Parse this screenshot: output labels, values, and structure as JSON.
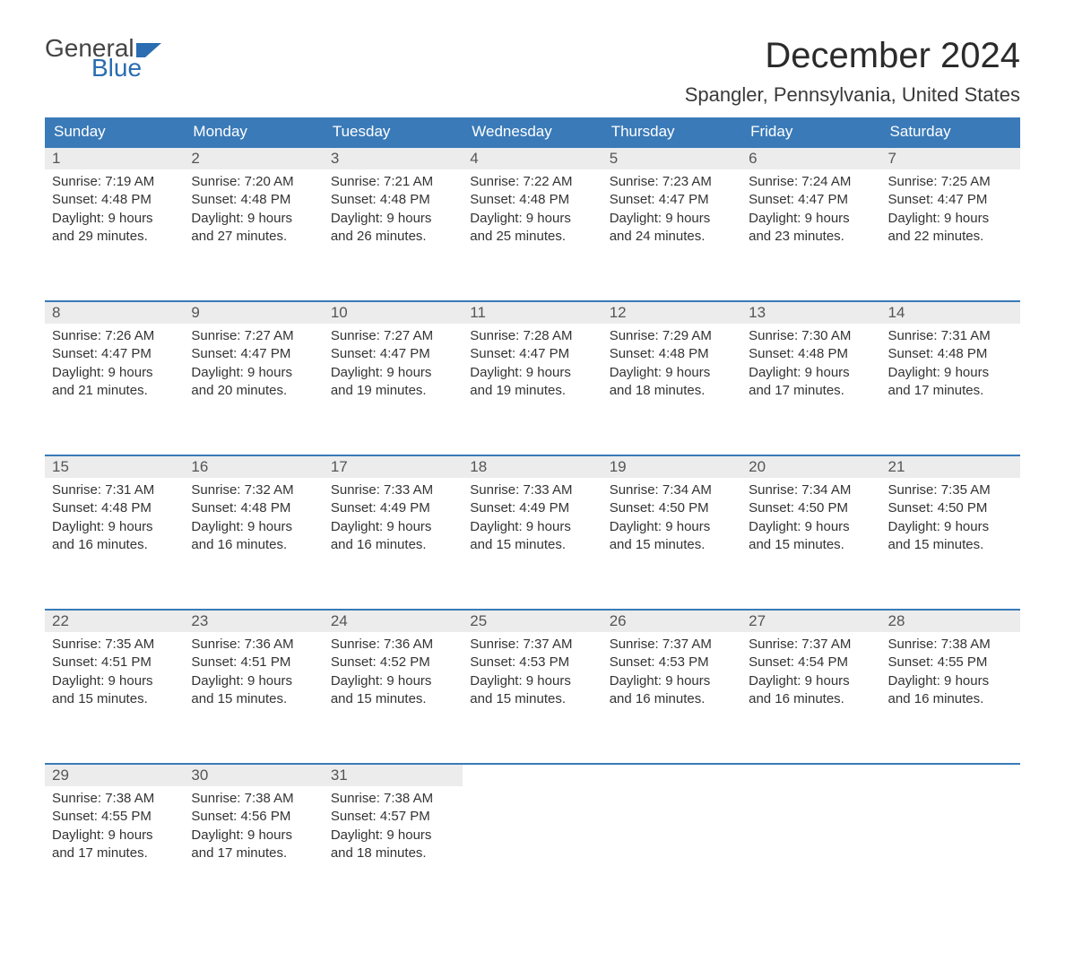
{
  "logo": {
    "word1": "General",
    "word2": "Blue"
  },
  "colors": {
    "header_bg": "#3a7ab8",
    "header_text": "#ffffff",
    "daynum_bg": "#ececec",
    "row_border": "#3a7ab8",
    "body_text": "#333333",
    "logo_gray": "#444444",
    "logo_blue": "#2a6db0"
  },
  "title": "December 2024",
  "location": "Spangler, Pennsylvania, United States",
  "day_headers": [
    "Sunday",
    "Monday",
    "Tuesday",
    "Wednesday",
    "Thursday",
    "Friday",
    "Saturday"
  ],
  "weeks": [
    [
      {
        "n": "1",
        "sr": "Sunrise: 7:19 AM",
        "ss": "Sunset: 4:48 PM",
        "d1": "Daylight: 9 hours",
        "d2": "and 29 minutes."
      },
      {
        "n": "2",
        "sr": "Sunrise: 7:20 AM",
        "ss": "Sunset: 4:48 PM",
        "d1": "Daylight: 9 hours",
        "d2": "and 27 minutes."
      },
      {
        "n": "3",
        "sr": "Sunrise: 7:21 AM",
        "ss": "Sunset: 4:48 PM",
        "d1": "Daylight: 9 hours",
        "d2": "and 26 minutes."
      },
      {
        "n": "4",
        "sr": "Sunrise: 7:22 AM",
        "ss": "Sunset: 4:48 PM",
        "d1": "Daylight: 9 hours",
        "d2": "and 25 minutes."
      },
      {
        "n": "5",
        "sr": "Sunrise: 7:23 AM",
        "ss": "Sunset: 4:47 PM",
        "d1": "Daylight: 9 hours",
        "d2": "and 24 minutes."
      },
      {
        "n": "6",
        "sr": "Sunrise: 7:24 AM",
        "ss": "Sunset: 4:47 PM",
        "d1": "Daylight: 9 hours",
        "d2": "and 23 minutes."
      },
      {
        "n": "7",
        "sr": "Sunrise: 7:25 AM",
        "ss": "Sunset: 4:47 PM",
        "d1": "Daylight: 9 hours",
        "d2": "and 22 minutes."
      }
    ],
    [
      {
        "n": "8",
        "sr": "Sunrise: 7:26 AM",
        "ss": "Sunset: 4:47 PM",
        "d1": "Daylight: 9 hours",
        "d2": "and 21 minutes."
      },
      {
        "n": "9",
        "sr": "Sunrise: 7:27 AM",
        "ss": "Sunset: 4:47 PM",
        "d1": "Daylight: 9 hours",
        "d2": "and 20 minutes."
      },
      {
        "n": "10",
        "sr": "Sunrise: 7:27 AM",
        "ss": "Sunset: 4:47 PM",
        "d1": "Daylight: 9 hours",
        "d2": "and 19 minutes."
      },
      {
        "n": "11",
        "sr": "Sunrise: 7:28 AM",
        "ss": "Sunset: 4:47 PM",
        "d1": "Daylight: 9 hours",
        "d2": "and 19 minutes."
      },
      {
        "n": "12",
        "sr": "Sunrise: 7:29 AM",
        "ss": "Sunset: 4:48 PM",
        "d1": "Daylight: 9 hours",
        "d2": "and 18 minutes."
      },
      {
        "n": "13",
        "sr": "Sunrise: 7:30 AM",
        "ss": "Sunset: 4:48 PM",
        "d1": "Daylight: 9 hours",
        "d2": "and 17 minutes."
      },
      {
        "n": "14",
        "sr": "Sunrise: 7:31 AM",
        "ss": "Sunset: 4:48 PM",
        "d1": "Daylight: 9 hours",
        "d2": "and 17 minutes."
      }
    ],
    [
      {
        "n": "15",
        "sr": "Sunrise: 7:31 AM",
        "ss": "Sunset: 4:48 PM",
        "d1": "Daylight: 9 hours",
        "d2": "and 16 minutes."
      },
      {
        "n": "16",
        "sr": "Sunrise: 7:32 AM",
        "ss": "Sunset: 4:48 PM",
        "d1": "Daylight: 9 hours",
        "d2": "and 16 minutes."
      },
      {
        "n": "17",
        "sr": "Sunrise: 7:33 AM",
        "ss": "Sunset: 4:49 PM",
        "d1": "Daylight: 9 hours",
        "d2": "and 16 minutes."
      },
      {
        "n": "18",
        "sr": "Sunrise: 7:33 AM",
        "ss": "Sunset: 4:49 PM",
        "d1": "Daylight: 9 hours",
        "d2": "and 15 minutes."
      },
      {
        "n": "19",
        "sr": "Sunrise: 7:34 AM",
        "ss": "Sunset: 4:50 PM",
        "d1": "Daylight: 9 hours",
        "d2": "and 15 minutes."
      },
      {
        "n": "20",
        "sr": "Sunrise: 7:34 AM",
        "ss": "Sunset: 4:50 PM",
        "d1": "Daylight: 9 hours",
        "d2": "and 15 minutes."
      },
      {
        "n": "21",
        "sr": "Sunrise: 7:35 AM",
        "ss": "Sunset: 4:50 PM",
        "d1": "Daylight: 9 hours",
        "d2": "and 15 minutes."
      }
    ],
    [
      {
        "n": "22",
        "sr": "Sunrise: 7:35 AM",
        "ss": "Sunset: 4:51 PM",
        "d1": "Daylight: 9 hours",
        "d2": "and 15 minutes."
      },
      {
        "n": "23",
        "sr": "Sunrise: 7:36 AM",
        "ss": "Sunset: 4:51 PM",
        "d1": "Daylight: 9 hours",
        "d2": "and 15 minutes."
      },
      {
        "n": "24",
        "sr": "Sunrise: 7:36 AM",
        "ss": "Sunset: 4:52 PM",
        "d1": "Daylight: 9 hours",
        "d2": "and 15 minutes."
      },
      {
        "n": "25",
        "sr": "Sunrise: 7:37 AM",
        "ss": "Sunset: 4:53 PM",
        "d1": "Daylight: 9 hours",
        "d2": "and 15 minutes."
      },
      {
        "n": "26",
        "sr": "Sunrise: 7:37 AM",
        "ss": "Sunset: 4:53 PM",
        "d1": "Daylight: 9 hours",
        "d2": "and 16 minutes."
      },
      {
        "n": "27",
        "sr": "Sunrise: 7:37 AM",
        "ss": "Sunset: 4:54 PM",
        "d1": "Daylight: 9 hours",
        "d2": "and 16 minutes."
      },
      {
        "n": "28",
        "sr": "Sunrise: 7:38 AM",
        "ss": "Sunset: 4:55 PM",
        "d1": "Daylight: 9 hours",
        "d2": "and 16 minutes."
      }
    ],
    [
      {
        "n": "29",
        "sr": "Sunrise: 7:38 AM",
        "ss": "Sunset: 4:55 PM",
        "d1": "Daylight: 9 hours",
        "d2": "and 17 minutes."
      },
      {
        "n": "30",
        "sr": "Sunrise: 7:38 AM",
        "ss": "Sunset: 4:56 PM",
        "d1": "Daylight: 9 hours",
        "d2": "and 17 minutes."
      },
      {
        "n": "31",
        "sr": "Sunrise: 7:38 AM",
        "ss": "Sunset: 4:57 PM",
        "d1": "Daylight: 9 hours",
        "d2": "and 18 minutes."
      },
      null,
      null,
      null,
      null
    ]
  ]
}
